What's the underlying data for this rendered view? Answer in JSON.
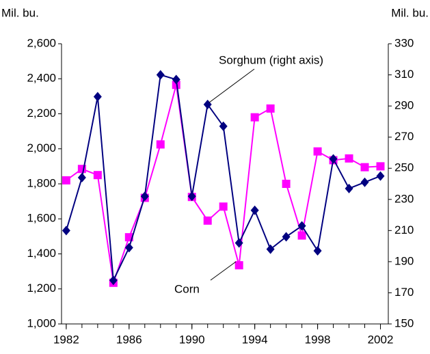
{
  "chart_data": {
    "type": "line",
    "ylabel": "Mil. bu.",
    "y2label": "Mil. bu.",
    "x": [
      1982,
      1983,
      1984,
      1985,
      1986,
      1987,
      1988,
      1989,
      1990,
      1991,
      1992,
      1993,
      1994,
      1995,
      1996,
      1997,
      1998,
      1999,
      2000,
      2001,
      2002
    ],
    "xlim": [
      1981.7,
      2002.5
    ],
    "xticks": [
      1982,
      1986,
      1990,
      1994,
      1998,
      2002
    ],
    "ylim": [
      1000,
      2600
    ],
    "yticks": [
      {
        "value": 1000,
        "label": "1,000"
      },
      {
        "value": 1200,
        "label": "1,200"
      },
      {
        "value": 1400,
        "label": "1,400"
      },
      {
        "value": 1600,
        "label": "1,600"
      },
      {
        "value": 1800,
        "label": "1,800"
      },
      {
        "value": 2000,
        "label": "2,000"
      },
      {
        "value": 2200,
        "label": "2,200"
      },
      {
        "value": 2400,
        "label": "2,400"
      },
      {
        "value": 2600,
        "label": "2,600"
      }
    ],
    "y2lim": [
      150,
      330
    ],
    "y2ticks": [
      150,
      170,
      190,
      210,
      230,
      250,
      270,
      290,
      310,
      330
    ],
    "series": [
      {
        "name": "Corn",
        "color": "#ff00ff",
        "marker": "square",
        "axis": "y",
        "values": [
          1820,
          1885,
          1850,
          1235,
          1495,
          1720,
          2025,
          2365,
          1725,
          1590,
          1670,
          1335,
          2180,
          2230,
          1800,
          1505,
          1985,
          1935,
          1945,
          1895,
          1900
        ]
      },
      {
        "name": "Sorghum",
        "color": "#000080",
        "marker": "diamond",
        "axis": "y2",
        "values": [
          210,
          244,
          296,
          178,
          199,
          232,
          310,
          307,
          232,
          291,
          277,
          202,
          223,
          198,
          206,
          213,
          197,
          256,
          237,
          241,
          245
        ]
      }
    ],
    "annotations": [
      {
        "text": "Sorghum (right axis)"
      },
      {
        "text": "Corn"
      }
    ]
  }
}
